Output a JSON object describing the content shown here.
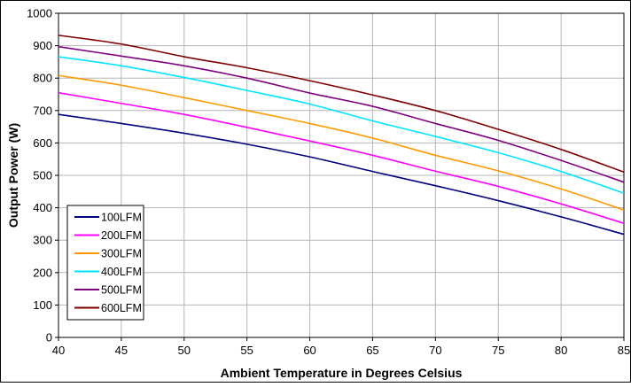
{
  "chart_data": {
    "type": "line",
    "xlabel": "Ambient Temperature in Degrees Celsius",
    "ylabel": "Output  Power (W)",
    "xlim": [
      40,
      85
    ],
    "ylim": [
      0,
      1000
    ],
    "xticks": [
      40,
      45,
      50,
      55,
      60,
      65,
      70,
      75,
      80,
      85
    ],
    "yticks": [
      0,
      100,
      200,
      300,
      400,
      500,
      600,
      700,
      800,
      900,
      1000
    ],
    "grid": true,
    "legend_position": "bottom-left",
    "x": [
      40,
      45,
      50,
      55,
      60,
      65,
      70,
      75,
      80,
      85
    ],
    "series": [
      {
        "name": "100LFM",
        "color": "#000080",
        "values": [
          688,
          660,
          630,
          596,
          557,
          512,
          468,
          422,
          372,
          318
        ]
      },
      {
        "name": "200LFM",
        "color": "#FF00FF",
        "values": [
          755,
          722,
          688,
          648,
          606,
          562,
          513,
          466,
          412,
          352
        ]
      },
      {
        "name": "300LFM",
        "color": "#FF9900",
        "values": [
          808,
          778,
          740,
          700,
          660,
          615,
          562,
          514,
          458,
          393
        ]
      },
      {
        "name": "400LFM",
        "color": "#00E5FF",
        "values": [
          866,
          838,
          802,
          762,
          720,
          668,
          620,
          570,
          512,
          445
        ]
      },
      {
        "name": "500LFM",
        "color": "#800080",
        "values": [
          897,
          868,
          838,
          800,
          754,
          713,
          660,
          608,
          546,
          479
        ]
      },
      {
        "name": "600LFM",
        "color": "#800000",
        "values": [
          932,
          905,
          866,
          832,
          792,
          748,
          700,
          642,
          580,
          510
        ]
      }
    ]
  }
}
